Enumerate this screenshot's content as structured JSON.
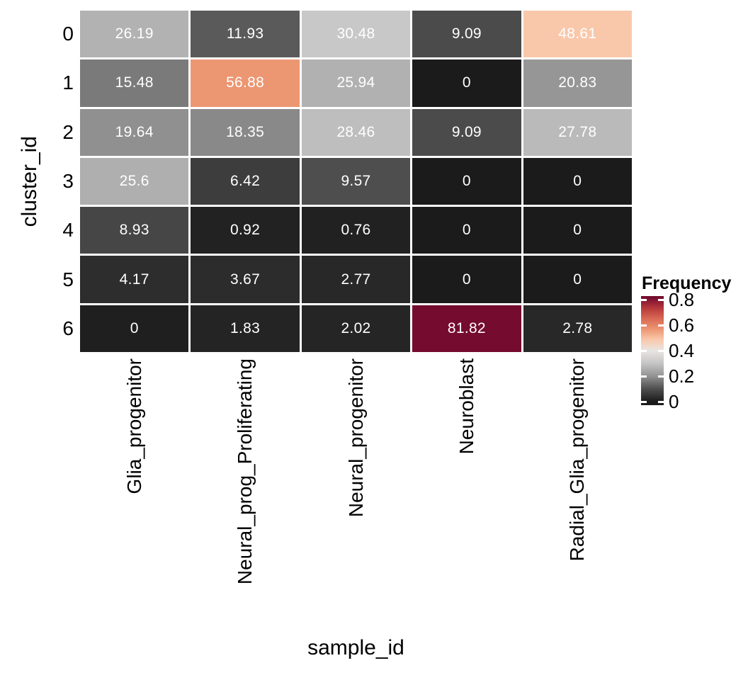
{
  "chart_data": {
    "type": "heatmap",
    "title": "",
    "xlabel": "sample_id",
    "ylabel": "cluster_id",
    "x_categories": [
      "Glia_progenitor",
      "Neural_prog_Proliferating",
      "Neural_progenitor",
      "Neuroblast",
      "Radial_Glia_progenitor"
    ],
    "y_categories": [
      "0",
      "1",
      "2",
      "3",
      "4",
      "5",
      "6"
    ],
    "values": [
      [
        26.19,
        11.93,
        30.48,
        9.09,
        48.61
      ],
      [
        15.48,
        56.88,
        25.94,
        0,
        20.83
      ],
      [
        19.64,
        18.35,
        28.46,
        9.09,
        27.78
      ],
      [
        25.6,
        6.42,
        9.57,
        0,
        0
      ],
      [
        8.93,
        0.92,
        0.76,
        0,
        0
      ],
      [
        4.17,
        3.67,
        2.77,
        0,
        0
      ],
      [
        0,
        1.83,
        2.02,
        81.82,
        2.78
      ]
    ],
    "cell_labels": [
      [
        "26.19",
        "11.93",
        "30.48",
        "9.09",
        "48.61"
      ],
      [
        "15.48",
        "56.88",
        "25.94",
        "0",
        "20.83"
      ],
      [
        "19.64",
        "18.35",
        "28.46",
        "9.09",
        "27.78"
      ],
      [
        "25.6",
        "6.42",
        "9.57",
        "0",
        "0"
      ],
      [
        "8.93",
        "0.92",
        "0.76",
        "0",
        "0"
      ],
      [
        "4.17",
        "3.67",
        "2.77",
        "0",
        "0"
      ],
      [
        "0",
        "1.83",
        "2.02",
        "81.82",
        "2.78"
      ]
    ],
    "cell_colors": [
      [
        "#b2b2b2",
        "#5a5a5a",
        "#c8c8c8",
        "#4b4b4b",
        "#f9c8ab"
      ],
      [
        "#7a7a7a",
        "#ec9672",
        "#b1b1b1",
        "#1b1b1b",
        "#969696"
      ],
      [
        "#909090",
        "#898989",
        "#bebebe",
        "#4b4b4b",
        "#bababa"
      ],
      [
        "#afafaf",
        "#3d3d3d",
        "#4e4e4e",
        "#1b1b1b",
        "#1b1b1b"
      ],
      [
        "#464646",
        "#222222",
        "#212121",
        "#1b1b1b",
        "#1b1b1b"
      ],
      [
        "#2d2d2d",
        "#2c2c2c",
        "#282828",
        "#1b1b1b",
        "#1b1b1b"
      ],
      [
        "#1f1f1f",
        "#242424",
        "#252525",
        "#750b2f",
        "#282828"
      ]
    ],
    "legend": {
      "title": "Frequency",
      "tick_labels": [
        "0.8",
        "0.6",
        "0.4",
        "0.2",
        "0"
      ],
      "tick_values": [
        0.8,
        0.6,
        0.4,
        0.2,
        0
      ],
      "gradient_stops": [
        {
          "pos": 0,
          "color": "#6d0828"
        },
        {
          "pos": 1.1,
          "color": "#750b2f"
        },
        {
          "pos": 11.4,
          "color": "#b83a3c"
        },
        {
          "pos": 20.8,
          "color": "#d96a55"
        },
        {
          "pos": 30.3,
          "color": "#ec9672"
        },
        {
          "pos": 39.9,
          "color": "#f9c8ab"
        },
        {
          "pos": 50,
          "color": "#e9e5e2"
        },
        {
          "pos": 61.7,
          "color": "#c5c5c5"
        },
        {
          "pos": 73.4,
          "color": "#929292"
        },
        {
          "pos": 85.1,
          "color": "#4e4e4e"
        },
        {
          "pos": 96.8,
          "color": "#1b1b1b"
        },
        {
          "pos": 100,
          "color": "#1b1b1b"
        }
      ]
    },
    "axis_ranges": {
      "fill_min": 0,
      "fill_max": 0.8182
    },
    "colors": {
      "cell_text": "#ffffff",
      "axis_text": "#000000",
      "background": "#ffffff",
      "grid_gap": "#ffffff",
      "legend_tick_mark": "#ffffff"
    }
  }
}
